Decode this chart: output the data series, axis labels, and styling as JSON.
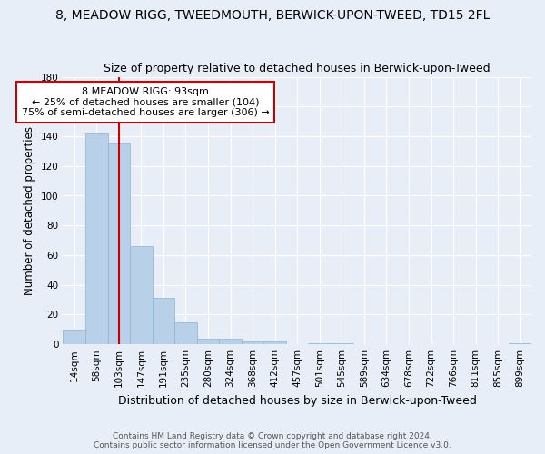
{
  "title": "8, MEADOW RIGG, TWEEDMOUTH, BERWICK-UPON-TWEED, TD15 2FL",
  "subtitle": "Size of property relative to detached houses in Berwick-upon-Tweed",
  "xlabel": "Distribution of detached houses by size in Berwick-upon-Tweed",
  "ylabel": "Number of detached properties",
  "footer_line1": "Contains HM Land Registry data © Crown copyright and database right 2024.",
  "footer_line2": "Contains public sector information licensed under the Open Government Licence v3.0.",
  "bin_labels": [
    "14sqm",
    "58sqm",
    "103sqm",
    "147sqm",
    "191sqm",
    "235sqm",
    "280sqm",
    "324sqm",
    "368sqm",
    "412sqm",
    "457sqm",
    "501sqm",
    "545sqm",
    "589sqm",
    "634sqm",
    "678sqm",
    "722sqm",
    "766sqm",
    "811sqm",
    "855sqm",
    "899sqm"
  ],
  "bar_values": [
    10,
    142,
    135,
    66,
    31,
    15,
    4,
    4,
    2,
    2,
    0,
    1,
    1,
    0,
    0,
    0,
    0,
    0,
    0,
    0,
    1
  ],
  "bar_color": "#b8d0e8",
  "bar_edgecolor": "#8ab4d4",
  "background_color": "#e8eef8",
  "grid_color": "#ffffff",
  "property_line_bin_index": 2.0,
  "annotation_text_line1": "8 MEADOW RIGG: 93sqm",
  "annotation_text_line2": "← 25% of detached houses are smaller (104)",
  "annotation_text_line3": "75% of semi-detached houses are larger (306) →",
  "annotation_box_color": "#ffffff",
  "annotation_box_edgecolor": "#cc0000",
  "vline_color": "#cc0000",
  "ylim": [
    0,
    180
  ],
  "yticks": [
    0,
    20,
    40,
    60,
    80,
    100,
    120,
    140,
    160,
    180
  ]
}
